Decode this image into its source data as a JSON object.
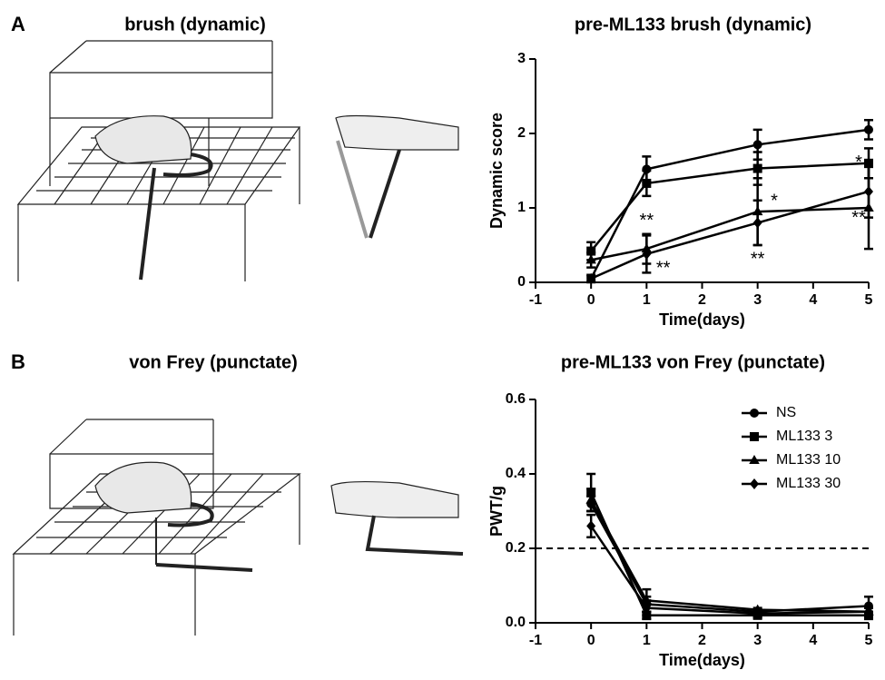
{
  "panels": [
    {
      "label": "A",
      "title": "brush (dynamic)"
    },
    {
      "label": "B",
      "title": "von Frey (punctate)"
    }
  ],
  "chart_data": [
    {
      "type": "line",
      "title": "pre-ML133 brush (dynamic)",
      "x_label": "Time(days)",
      "y_label": "Dynamic score",
      "x": [
        0,
        1,
        3,
        5
      ],
      "xlim": [
        -1,
        5
      ],
      "xticks": [
        -1,
        0,
        1,
        2,
        3,
        4,
        5
      ],
      "ylim": [
        0,
        3
      ],
      "yticks": [
        0,
        1,
        2,
        3
      ],
      "series": [
        {
          "name": "NS",
          "color": "#000000",
          "marker": "circle",
          "values": [
            0.05,
            1.52,
            1.85,
            2.05
          ],
          "errors": [
            0.05,
            0.17,
            0.2,
            0.13
          ]
        },
        {
          "name": "ML133 3",
          "color": "#000000",
          "marker": "square",
          "values": [
            0.42,
            1.33,
            1.53,
            1.6
          ],
          "errors": [
            0.12,
            0.17,
            0.22,
            0.2
          ]
        },
        {
          "name": "ML133 10",
          "color": "#000000",
          "marker": "triangle",
          "values": [
            0.3,
            0.45,
            0.95,
            1.0
          ],
          "errors": [
            0.1,
            0.2,
            0.45,
            0.55
          ]
        },
        {
          "name": "ML133 30",
          "color": "#000000",
          "marker": "diamond",
          "values": [
            0.05,
            0.38,
            0.8,
            1.22
          ],
          "errors": [
            0.03,
            0.25,
            0.3,
            0.35
          ]
        }
      ],
      "annotations": [
        {
          "text": "**",
          "x": 1,
          "y": 0.82
        },
        {
          "text": "**",
          "x": 1.3,
          "y": 0.18
        },
        {
          "text": "*",
          "x": 3.3,
          "y": 1.08
        },
        {
          "text": "**",
          "x": 3,
          "y": 0.3
        },
        {
          "text": "*",
          "x": 4.82,
          "y": 1.6
        },
        {
          "text": "**",
          "x": 4.82,
          "y": 0.86
        }
      ]
    },
    {
      "type": "line",
      "title": "pre-ML133 von Frey (punctate)",
      "x_label": "Time(days)",
      "y_label": "PWT/g",
      "x": [
        0,
        1,
        3,
        5
      ],
      "xlim": [
        -1,
        5
      ],
      "xticks": [
        -1,
        0,
        1,
        2,
        3,
        4,
        5
      ],
      "ylim": [
        0,
        0.6
      ],
      "yticks": [
        {
          "value": 0,
          "label": "0.0"
        },
        0.2,
        0.4,
        0.6
      ],
      "reference_line": 0.2,
      "legend": "upper right",
      "series": [
        {
          "name": "NS",
          "color": "#000000",
          "marker": "circle",
          "values": [
            0.32,
            0.05,
            0.03,
            0.045
          ],
          "errors": [
            0.02,
            0.02,
            0.005,
            0.025
          ]
        },
        {
          "name": "ML133 3",
          "color": "#000000",
          "marker": "square",
          "values": [
            0.35,
            0.02,
            0.02,
            0.02
          ],
          "errors": [
            0.05,
            0.01,
            0.005,
            0.01
          ]
        },
        {
          "name": "ML133 10",
          "color": "#000000",
          "marker": "triangle",
          "values": [
            0.33,
            0.06,
            0.035,
            0.03
          ],
          "errors": [
            0.03,
            0.03,
            0.005,
            0.01
          ]
        },
        {
          "name": "ML133 30",
          "color": "#000000",
          "marker": "diamond",
          "values": [
            0.26,
            0.04,
            0.025,
            0.03
          ],
          "errors": [
            0.03,
            0.02,
            0.005,
            0.01
          ]
        }
      ]
    }
  ]
}
